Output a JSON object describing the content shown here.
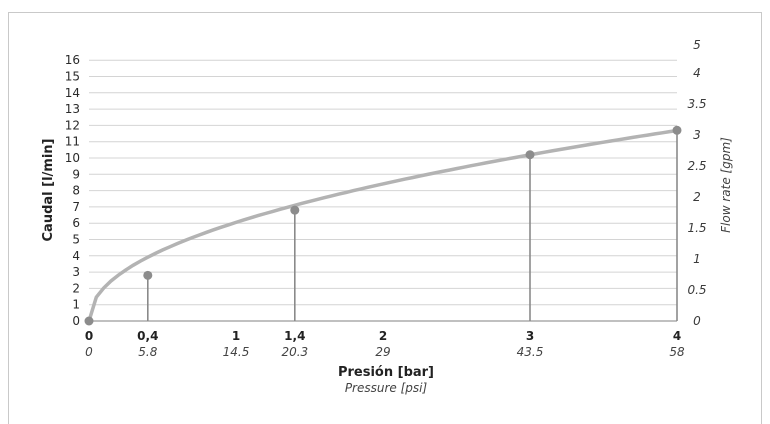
{
  "chart_data": {
    "type": "line",
    "title": "",
    "xlabel": "Presión [bar]",
    "xlabel_secondary": "Pressure [psi]",
    "ylabel": "Caudal [l/min]",
    "ylabel_secondary": "Flow rate [gpm]",
    "xlim": [
      0,
      4
    ],
    "ylim": [
      0,
      16
    ],
    "ylim_secondary": [
      0,
      5
    ],
    "grid": true,
    "x_ticks_bar": [
      "0",
      "0,4",
      "1",
      "1,4",
      "2",
      "3",
      "4"
    ],
    "x_ticks_psi": [
      "0",
      "5.8",
      "14.5",
      "20.3",
      "29",
      "43.5",
      "58"
    ],
    "x_tick_values": [
      0,
      0.4,
      1,
      1.4,
      2,
      3,
      4
    ],
    "y_ticks_left": [
      "0",
      "1",
      "2",
      "3",
      "4",
      "5",
      "6",
      "7",
      "8",
      "9",
      "10",
      "11",
      "12",
      "13",
      "14",
      "15",
      "16"
    ],
    "y_ticks_right": [
      "0",
      "0.5",
      "1",
      "1.5",
      "2",
      "2.5",
      "3",
      "3.5",
      "4",
      "5"
    ],
    "y_ticks_right_values": [
      0,
      0.5,
      1,
      1.5,
      2,
      2.5,
      3,
      3.5,
      4,
      5
    ],
    "series": [
      {
        "x": [
          0,
          0.4,
          1.4,
          3,
          4
        ],
        "y": [
          0,
          2.8,
          6.8,
          10.2,
          11.7
        ]
      }
    ],
    "line_color": "#b3b3b3",
    "marker_color": "#8c8c8c",
    "grid_color": "#d4d4d4"
  }
}
